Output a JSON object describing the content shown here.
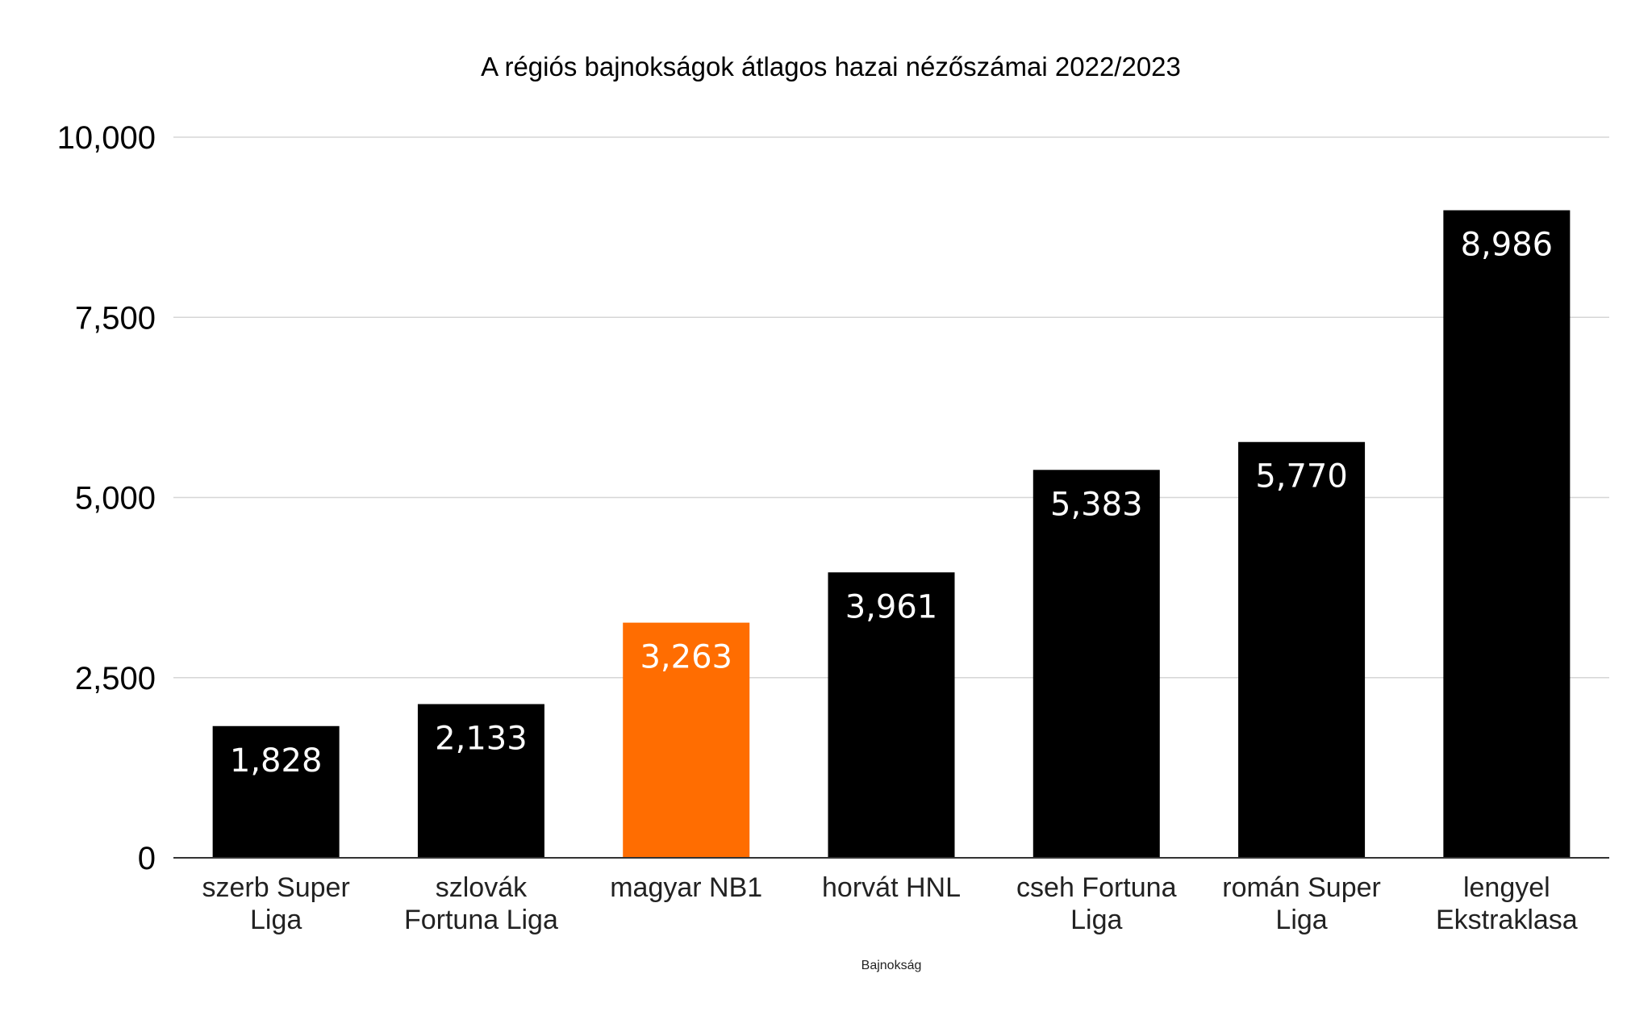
{
  "chart_data": {
    "type": "bar",
    "title": "A régiós bajnokságok átlagos hazai nézőszámai 2022/2023",
    "xlabel": "Bajnokság",
    "ylabel": "",
    "ylim": [
      0,
      10000
    ],
    "yticks": [
      0,
      2500,
      5000,
      7500,
      10000
    ],
    "ytick_labels": [
      "0",
      "2,500",
      "5,000",
      "7,500",
      "10,000"
    ],
    "categories": [
      [
        "szerb Super",
        "Liga"
      ],
      [
        "szlovák",
        "Fortuna Liga"
      ],
      [
        "magyar NB1"
      ],
      [
        "horvát HNL"
      ],
      [
        "cseh Fortuna",
        "Liga"
      ],
      [
        "román Super",
        "Liga"
      ],
      [
        "lengyel",
        "Ekstraklasa"
      ]
    ],
    "values": [
      1828,
      2133,
      3263,
      3961,
      5383,
      5770,
      8986
    ],
    "data_labels": [
      "1,828",
      "2,133",
      "3,263",
      "3,961",
      "5,383",
      "5,770",
      "8,986"
    ],
    "bar_colors": [
      "#000000",
      "#000000",
      "#ff6d01",
      "#000000",
      "#000000",
      "#000000",
      "#000000"
    ],
    "grid": true,
    "legend": "none"
  }
}
